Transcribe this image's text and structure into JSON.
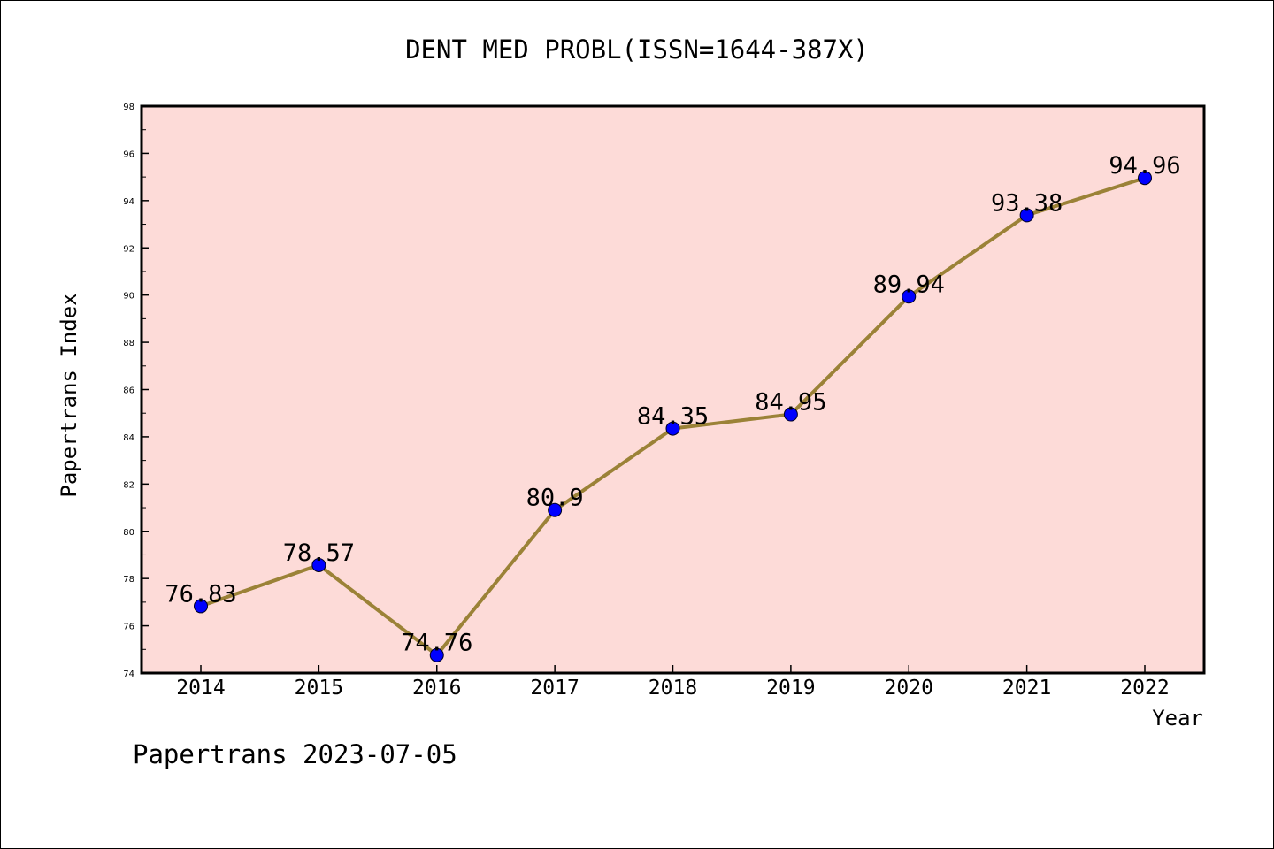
{
  "chart_data": {
    "type": "line",
    "title": "DENT MED PROBL(ISSN=1644-387X)",
    "xlabel": "Year",
    "ylabel": "Papertrans Index",
    "categories": [
      "2014",
      "2015",
      "2016",
      "2017",
      "2018",
      "2019",
      "2020",
      "2021",
      "2022"
    ],
    "values": [
      76.83,
      78.57,
      74.76,
      80.9,
      84.35,
      84.95,
      89.94,
      93.38,
      94.96
    ],
    "data_labels": [
      "76.83",
      "78.57",
      "74.76",
      "80.9",
      "84.35",
      "84.95",
      "89.94",
      "93.38",
      "94.96"
    ],
    "ylim": [
      74,
      98
    ],
    "yticks": [
      "74",
      "76",
      "78",
      "80",
      "82",
      "84",
      "86",
      "88",
      "90",
      "92",
      "94",
      "96",
      "98"
    ],
    "grid": false,
    "colors": {
      "plot_background": "#fddbd8",
      "line": "#9b8237",
      "marker": "#0000ff"
    }
  },
  "footer": "Papertrans 2023-07-05"
}
